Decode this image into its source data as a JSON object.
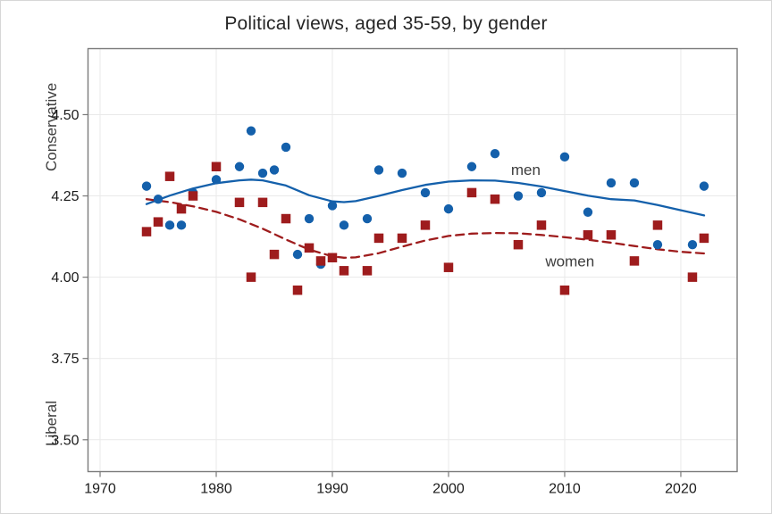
{
  "window": {
    "background": "#ffffff",
    "frame_border_color": "#d7d7d7"
  },
  "chart_data": {
    "type": "scatter",
    "title": "Political views, aged 35-59, by gender",
    "ylabel_top": "Conservative",
    "ylabel_bottom": "Liberal",
    "xlabel": "",
    "grid": true,
    "legend_position": "inline-annotations",
    "xlim": [
      1968.96,
      2024.85
    ],
    "ylim": [
      3.402,
      4.703
    ],
    "x_ticks": [
      1970,
      1980,
      1990,
      2000,
      2010,
      2020
    ],
    "y_ticks": [
      "4.50",
      "4.25",
      "4.00",
      "3.75",
      "3.50"
    ],
    "axis_color": "#7a7a7a",
    "grid_color": "#e9e9e9",
    "x": [
      1974,
      1975,
      1976,
      1977,
      1978,
      1980,
      1982,
      1983,
      1984,
      1985,
      1986,
      1987,
      1988,
      1989,
      1990,
      1991,
      1993,
      1994,
      1996,
      1998,
      2000,
      2002,
      2004,
      2006,
      2008,
      2010,
      2012,
      2014,
      2016,
      2018,
      2021,
      2022
    ],
    "series": [
      {
        "name": "men",
        "marker": "circle",
        "color": "#1460ab",
        "values": [
          4.28,
          4.24,
          4.16,
          4.16,
          4.26,
          4.3,
          4.34,
          4.45,
          4.32,
          4.33,
          4.4,
          4.07,
          4.18,
          4.04,
          4.22,
          4.16,
          4.18,
          4.33,
          4.32,
          4.26,
          4.21,
          4.34,
          4.38,
          4.25,
          4.26,
          4.37,
          4.2,
          4.29,
          4.29,
          4.1,
          4.1,
          4.28
        ],
        "trend_style": "solid",
        "trend": [
          [
            1974,
            4.225
          ],
          [
            1976,
            4.251
          ],
          [
            1978,
            4.273
          ],
          [
            1980,
            4.289
          ],
          [
            1982,
            4.298
          ],
          [
            1983,
            4.3
          ],
          [
            1984,
            4.298
          ],
          [
            1986,
            4.282
          ],
          [
            1988,
            4.252
          ],
          [
            1990,
            4.233
          ],
          [
            1991,
            4.231
          ],
          [
            1992,
            4.234
          ],
          [
            1994,
            4.25
          ],
          [
            1996,
            4.268
          ],
          [
            1998,
            4.284
          ],
          [
            2000,
            4.294
          ],
          [
            2002,
            4.298
          ],
          [
            2004,
            4.297
          ],
          [
            2006,
            4.29
          ],
          [
            2008,
            4.279
          ],
          [
            2010,
            4.265
          ],
          [
            2012,
            4.251
          ],
          [
            2014,
            4.24
          ],
          [
            2016,
            4.236
          ],
          [
            2018,
            4.222
          ],
          [
            2020,
            4.206
          ],
          [
            2022,
            4.19
          ]
        ]
      },
      {
        "name": "women",
        "marker": "square",
        "color": "#9e1c1d",
        "values": [
          4.14,
          4.17,
          4.31,
          4.21,
          4.25,
          4.34,
          4.23,
          4.0,
          4.23,
          4.07,
          4.18,
          3.96,
          4.09,
          4.05,
          4.06,
          4.02,
          4.02,
          4.12,
          4.12,
          4.16,
          4.03,
          4.26,
          4.24,
          4.1,
          4.16,
          3.96,
          4.13,
          4.13,
          4.05,
          4.16,
          4.0,
          4.12
        ],
        "trend_style": "dashed",
        "trend": [
          [
            1974,
            4.24
          ],
          [
            1976,
            4.231
          ],
          [
            1978,
            4.218
          ],
          [
            1980,
            4.201
          ],
          [
            1982,
            4.178
          ],
          [
            1984,
            4.149
          ],
          [
            1986,
            4.116
          ],
          [
            1988,
            4.085
          ],
          [
            1990,
            4.064
          ],
          [
            1991,
            4.06
          ],
          [
            1992,
            4.061
          ],
          [
            1994,
            4.074
          ],
          [
            1996,
            4.094
          ],
          [
            1998,
            4.113
          ],
          [
            2000,
            4.127
          ],
          [
            2002,
            4.134
          ],
          [
            2004,
            4.136
          ],
          [
            2006,
            4.135
          ],
          [
            2008,
            4.13
          ],
          [
            2010,
            4.123
          ],
          [
            2012,
            4.115
          ],
          [
            2014,
            4.106
          ],
          [
            2016,
            4.096
          ],
          [
            2018,
            4.086
          ],
          [
            2020,
            4.078
          ],
          [
            2022,
            4.073
          ]
        ]
      }
    ],
    "annotations": [
      {
        "text": "men",
        "x": 2006.65,
        "y": 4.331,
        "color": "#3d3d3d"
      },
      {
        "text": "women",
        "x": 2010.45,
        "y": 4.05,
        "color": "#3d3d3d"
      }
    ]
  }
}
